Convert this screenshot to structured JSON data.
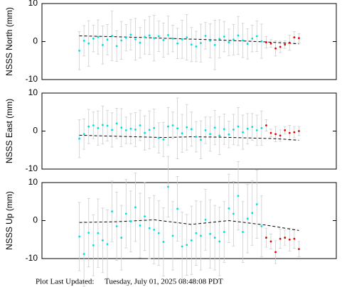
{
  "chart_data": [
    {
      "type": "scatter",
      "ylabel": "NSSS North (mm)",
      "ylim": [
        -10,
        10
      ],
      "yticks": [
        -10,
        0,
        10
      ],
      "xlim": [
        -8,
        55
      ],
      "series": [
        {
          "color": "#00e0e0",
          "x": [
            0,
            1,
            2,
            3,
            4,
            5,
            6,
            7,
            8,
            9,
            10,
            11,
            12,
            13,
            14,
            15,
            16,
            17,
            18,
            19,
            20,
            21,
            22,
            23,
            24,
            25,
            26,
            27,
            28,
            29,
            30,
            31,
            32,
            33,
            34,
            35,
            36,
            37,
            38,
            39
          ],
          "values": [
            -2.4,
            0.2,
            -0.5,
            0.8,
            1.2,
            -0.9,
            0.5,
            1.5,
            -1.2,
            0.3,
            1.0,
            1.8,
            0.6,
            -0.3,
            1.2,
            1.6,
            0.9,
            1.4,
            0.4,
            1.7,
            0.8,
            -0.5,
            0.6,
            1.1,
            -0.8,
            -1.3,
            -0.4,
            1.5,
            0.2,
            -0.9,
            0.7,
            1.3,
            -0.2,
            0.5,
            1.6,
            0.3,
            -0.6,
            0.8,
            1.4,
            0.1
          ],
          "errors": [
            5,
            4,
            6,
            3.5,
            4.5,
            5,
            4,
            6.5,
            4,
            5,
            3.5,
            4,
            5.5,
            4,
            4.5,
            5,
            6,
            4,
            4.5,
            5,
            3.5,
            4,
            5,
            6,
            4.5,
            4,
            5,
            3.5,
            4.5,
            6.5,
            5,
            4,
            3.5,
            4,
            5,
            4.5,
            4,
            3.5,
            4,
            4.5
          ]
        },
        {
          "color": "#e00000",
          "x": [
            40,
            41,
            42,
            43,
            44,
            45,
            46,
            47
          ],
          "values": [
            -0.2,
            -0.5,
            -1.8,
            -1.4,
            -0.8,
            -0.3,
            1.1,
            0.9
          ],
          "errors": [
            1.5,
            1,
            2,
            1.5,
            1,
            2,
            1.5,
            1.2
          ]
        }
      ],
      "trend": {
        "x": [
          0,
          10,
          20,
          30,
          40,
          47
        ],
        "values": [
          1.5,
          1.2,
          0.8,
          0.4,
          -0.1,
          -0.6
        ]
      }
    },
    {
      "type": "scatter",
      "ylabel": "NSSS East (mm)",
      "ylim": [
        -10,
        10
      ],
      "yticks": [
        -10,
        0,
        10
      ],
      "xlim": [
        -8,
        55
      ],
      "series": [
        {
          "color": "#00e0e0",
          "x": [
            0,
            1,
            2,
            3,
            4,
            5,
            6,
            7,
            8,
            9,
            10,
            11,
            12,
            13,
            14,
            15,
            16,
            17,
            18,
            19,
            20,
            21,
            22,
            23,
            24,
            25,
            26,
            27,
            28,
            29,
            30,
            31,
            32,
            33,
            34,
            35,
            36,
            37,
            38,
            39
          ],
          "values": [
            -2.0,
            -0.8,
            1.2,
            1.5,
            0.8,
            1.6,
            1.4,
            0.3,
            2.0,
            0.9,
            0.2,
            0.6,
            0.4,
            1.5,
            -0.5,
            0.3,
            0.8,
            -1.8,
            -2.2,
            1.2,
            1.5,
            0.7,
            -0.6,
            1.0,
            0.5,
            -1.5,
            -2.3,
            0.2,
            -0.8,
            0.9,
            -1.2,
            0.5,
            -0.9,
            0.4,
            1.2,
            -0.3,
            0.6,
            1.1,
            0.2,
            0.8
          ],
          "errors": [
            5,
            4,
            4.5,
            3.5,
            4.5,
            5,
            4,
            4.5,
            4,
            5,
            3.5,
            4,
            4.5,
            4,
            4.5,
            5,
            5,
            4,
            4.5,
            5,
            3.5,
            8,
            5,
            6,
            4.5,
            4,
            5,
            3.5,
            4.5,
            4.5,
            5,
            4,
            3.5,
            4,
            5,
            4.5,
            4,
            3.5,
            4,
            4.5
          ]
        },
        {
          "color": "#e00000",
          "x": [
            40,
            41,
            42,
            43,
            44,
            45,
            46,
            47
          ],
          "values": [
            1.5,
            -0.5,
            -0.8,
            -1.2,
            0.2,
            -0.5,
            -0.3,
            0.0
          ],
          "errors": [
            1.5,
            1,
            2,
            1.5,
            1,
            2,
            1.5,
            1.2
          ]
        }
      ],
      "trend": {
        "x": [
          0,
          6,
          12,
          18,
          24,
          30,
          36,
          42,
          47
        ],
        "values": [
          -1.1,
          -1.3,
          -1.5,
          -1.7,
          -1.5,
          -1.6,
          -1.8,
          -2.0,
          -2.4
        ]
      }
    },
    {
      "type": "scatter",
      "ylabel": "NSSS Up (mm)",
      "ylim": [
        -10,
        10
      ],
      "yticks": [
        -10,
        0,
        10
      ],
      "xlim": [
        -8,
        55
      ],
      "series": [
        {
          "color": "#00e0e0",
          "x": [
            0,
            1,
            2,
            3,
            4,
            5,
            6,
            7,
            8,
            9,
            10,
            11,
            12,
            13,
            14,
            15,
            16,
            17,
            18,
            19,
            20,
            21,
            22,
            23,
            24,
            25,
            26,
            27,
            28,
            29,
            30,
            31,
            32,
            33,
            34,
            35,
            36,
            37,
            38,
            39
          ],
          "values": [
            -4.2,
            -8.8,
            -3.2,
            -6.5,
            -3.3,
            -5.2,
            -6.2,
            2.4,
            -1.5,
            -4.5,
            1.8,
            -0.2,
            3.5,
            -1.3,
            1.1,
            -2.0,
            -2.4,
            -3.3,
            -5.6,
            8.9,
            -4.0,
            3.1,
            -6.8,
            -6.4,
            -5.2,
            -3.3,
            -4.0,
            0.2,
            -3.5,
            -4.5,
            -5.5,
            -3.0,
            3.2,
            1.8,
            6.5,
            -3.0,
            0.5,
            2.0,
            4.3,
            -1.5
          ],
          "errors": [
            9,
            8.5,
            9,
            8,
            9,
            8.5,
            9,
            8,
            9,
            8.5,
            9,
            8,
            9,
            8.5,
            9,
            8,
            9,
            8.5,
            9,
            8,
            9,
            8.5,
            9,
            8,
            9,
            8.5,
            9,
            8,
            9,
            8.5,
            9,
            8,
            9,
            8.5,
            9,
            8,
            9,
            8.5,
            9,
            8
          ]
        },
        {
          "color": "#e00000",
          "x": [
            40,
            41,
            42,
            43,
            44,
            45,
            46,
            47
          ],
          "values": [
            -4.5,
            -5.5,
            -8.3,
            -4.8,
            -4.5,
            -5.0,
            -4.8,
            -7.5
          ],
          "errors": [
            2.5,
            2,
            3,
            2.5,
            2,
            3,
            2.5,
            2
          ]
        }
      ],
      "trend": {
        "x": [
          0,
          8,
          16,
          24,
          32,
          40,
          47
        ],
        "values": [
          -0.5,
          -0.3,
          0.2,
          -1.0,
          0.0,
          -1.2,
          -2.6
        ]
      }
    }
  ],
  "footer": {
    "label": "Plot Last Updated:",
    "value": "Tuesday, July 01, 2025 08:48:08 PDT"
  }
}
